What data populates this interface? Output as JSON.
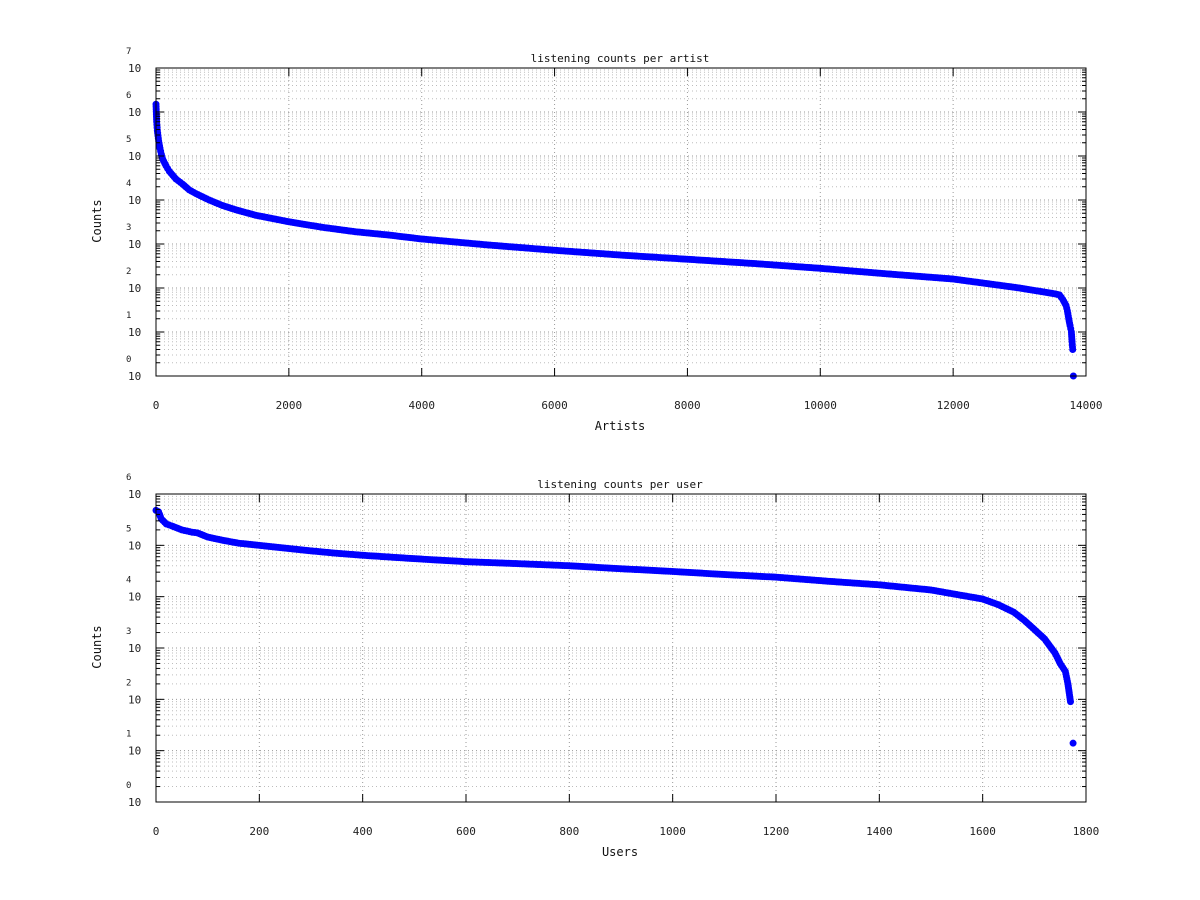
{
  "chart_data": [
    {
      "type": "scatter",
      "title": "listening counts per artist",
      "xlabel": "Artists",
      "ylabel": "Counts",
      "xlim": [
        0,
        14000
      ],
      "xticks": [
        0,
        2000,
        4000,
        6000,
        8000,
        10000,
        12000,
        14000
      ],
      "yscale": "log",
      "ylim": [
        1,
        10000000
      ],
      "yticks_exponents": [
        0,
        1,
        2,
        3,
        4,
        5,
        6,
        7
      ],
      "ytick_base": "10",
      "grid": true,
      "marker_color": "#0000ff",
      "series": [
        {
          "x": [
            0,
            10,
            20,
            40,
            60,
            80,
            100,
            150,
            200,
            300,
            400,
            500,
            600,
            800,
            1000,
            1200,
            1500,
            2000,
            2500,
            3000,
            3500,
            4000,
            5000,
            6000,
            7000,
            8000,
            9000,
            10000,
            11000,
            12000,
            13000,
            13500,
            13600,
            13650,
            13700,
            13720,
            13740,
            13760,
            13780,
            13790,
            13800,
            13810
          ],
          "y": [
            1500000,
            600000,
            380000,
            220000,
            150000,
            110000,
            85000,
            60000,
            45000,
            30000,
            23000,
            17000,
            14000,
            10000,
            7500,
            6000,
            4500,
            3200,
            2400,
            1900,
            1600,
            1300,
            950,
            720,
            560,
            450,
            360,
            280,
            210,
            160,
            100,
            75,
            70,
            55,
            40,
            30,
            20,
            14,
            10,
            6,
            4,
            1
          ]
        }
      ]
    },
    {
      "type": "scatter",
      "title": "listening counts per user",
      "xlabel": "Users",
      "ylabel": "Counts",
      "xlim": [
        0,
        1800
      ],
      "xticks": [
        0,
        200,
        400,
        600,
        800,
        1000,
        1200,
        1400,
        1600,
        1800
      ],
      "yscale": "log",
      "ylim": [
        1,
        1000000
      ],
      "yticks_exponents": [
        0,
        1,
        2,
        3,
        4,
        5,
        6
      ],
      "ytick_base": "10",
      "grid": true,
      "marker_color": "#0000ff",
      "series": [
        {
          "x": [
            0,
            5,
            10,
            20,
            30,
            50,
            70,
            80,
            100,
            130,
            160,
            200,
            250,
            300,
            350,
            400,
            500,
            600,
            700,
            800,
            900,
            1000,
            1100,
            1200,
            1300,
            1400,
            1500,
            1550,
            1600,
            1630,
            1660,
            1680,
            1700,
            1720,
            1740,
            1750,
            1760,
            1765,
            1770,
            1775
          ],
          "y": [
            480000,
            450000,
            330000,
            260000,
            240000,
            200000,
            180000,
            175000,
            145000,
            125000,
            110000,
            100000,
            88000,
            78000,
            70000,
            64000,
            55000,
            48000,
            44000,
            40000,
            35000,
            31000,
            27000,
            24000,
            20000,
            17000,
            13500,
            11000,
            9000,
            7000,
            5000,
            3500,
            2300,
            1500,
            800,
            500,
            350,
            200,
            90,
            14
          ]
        }
      ]
    }
  ]
}
